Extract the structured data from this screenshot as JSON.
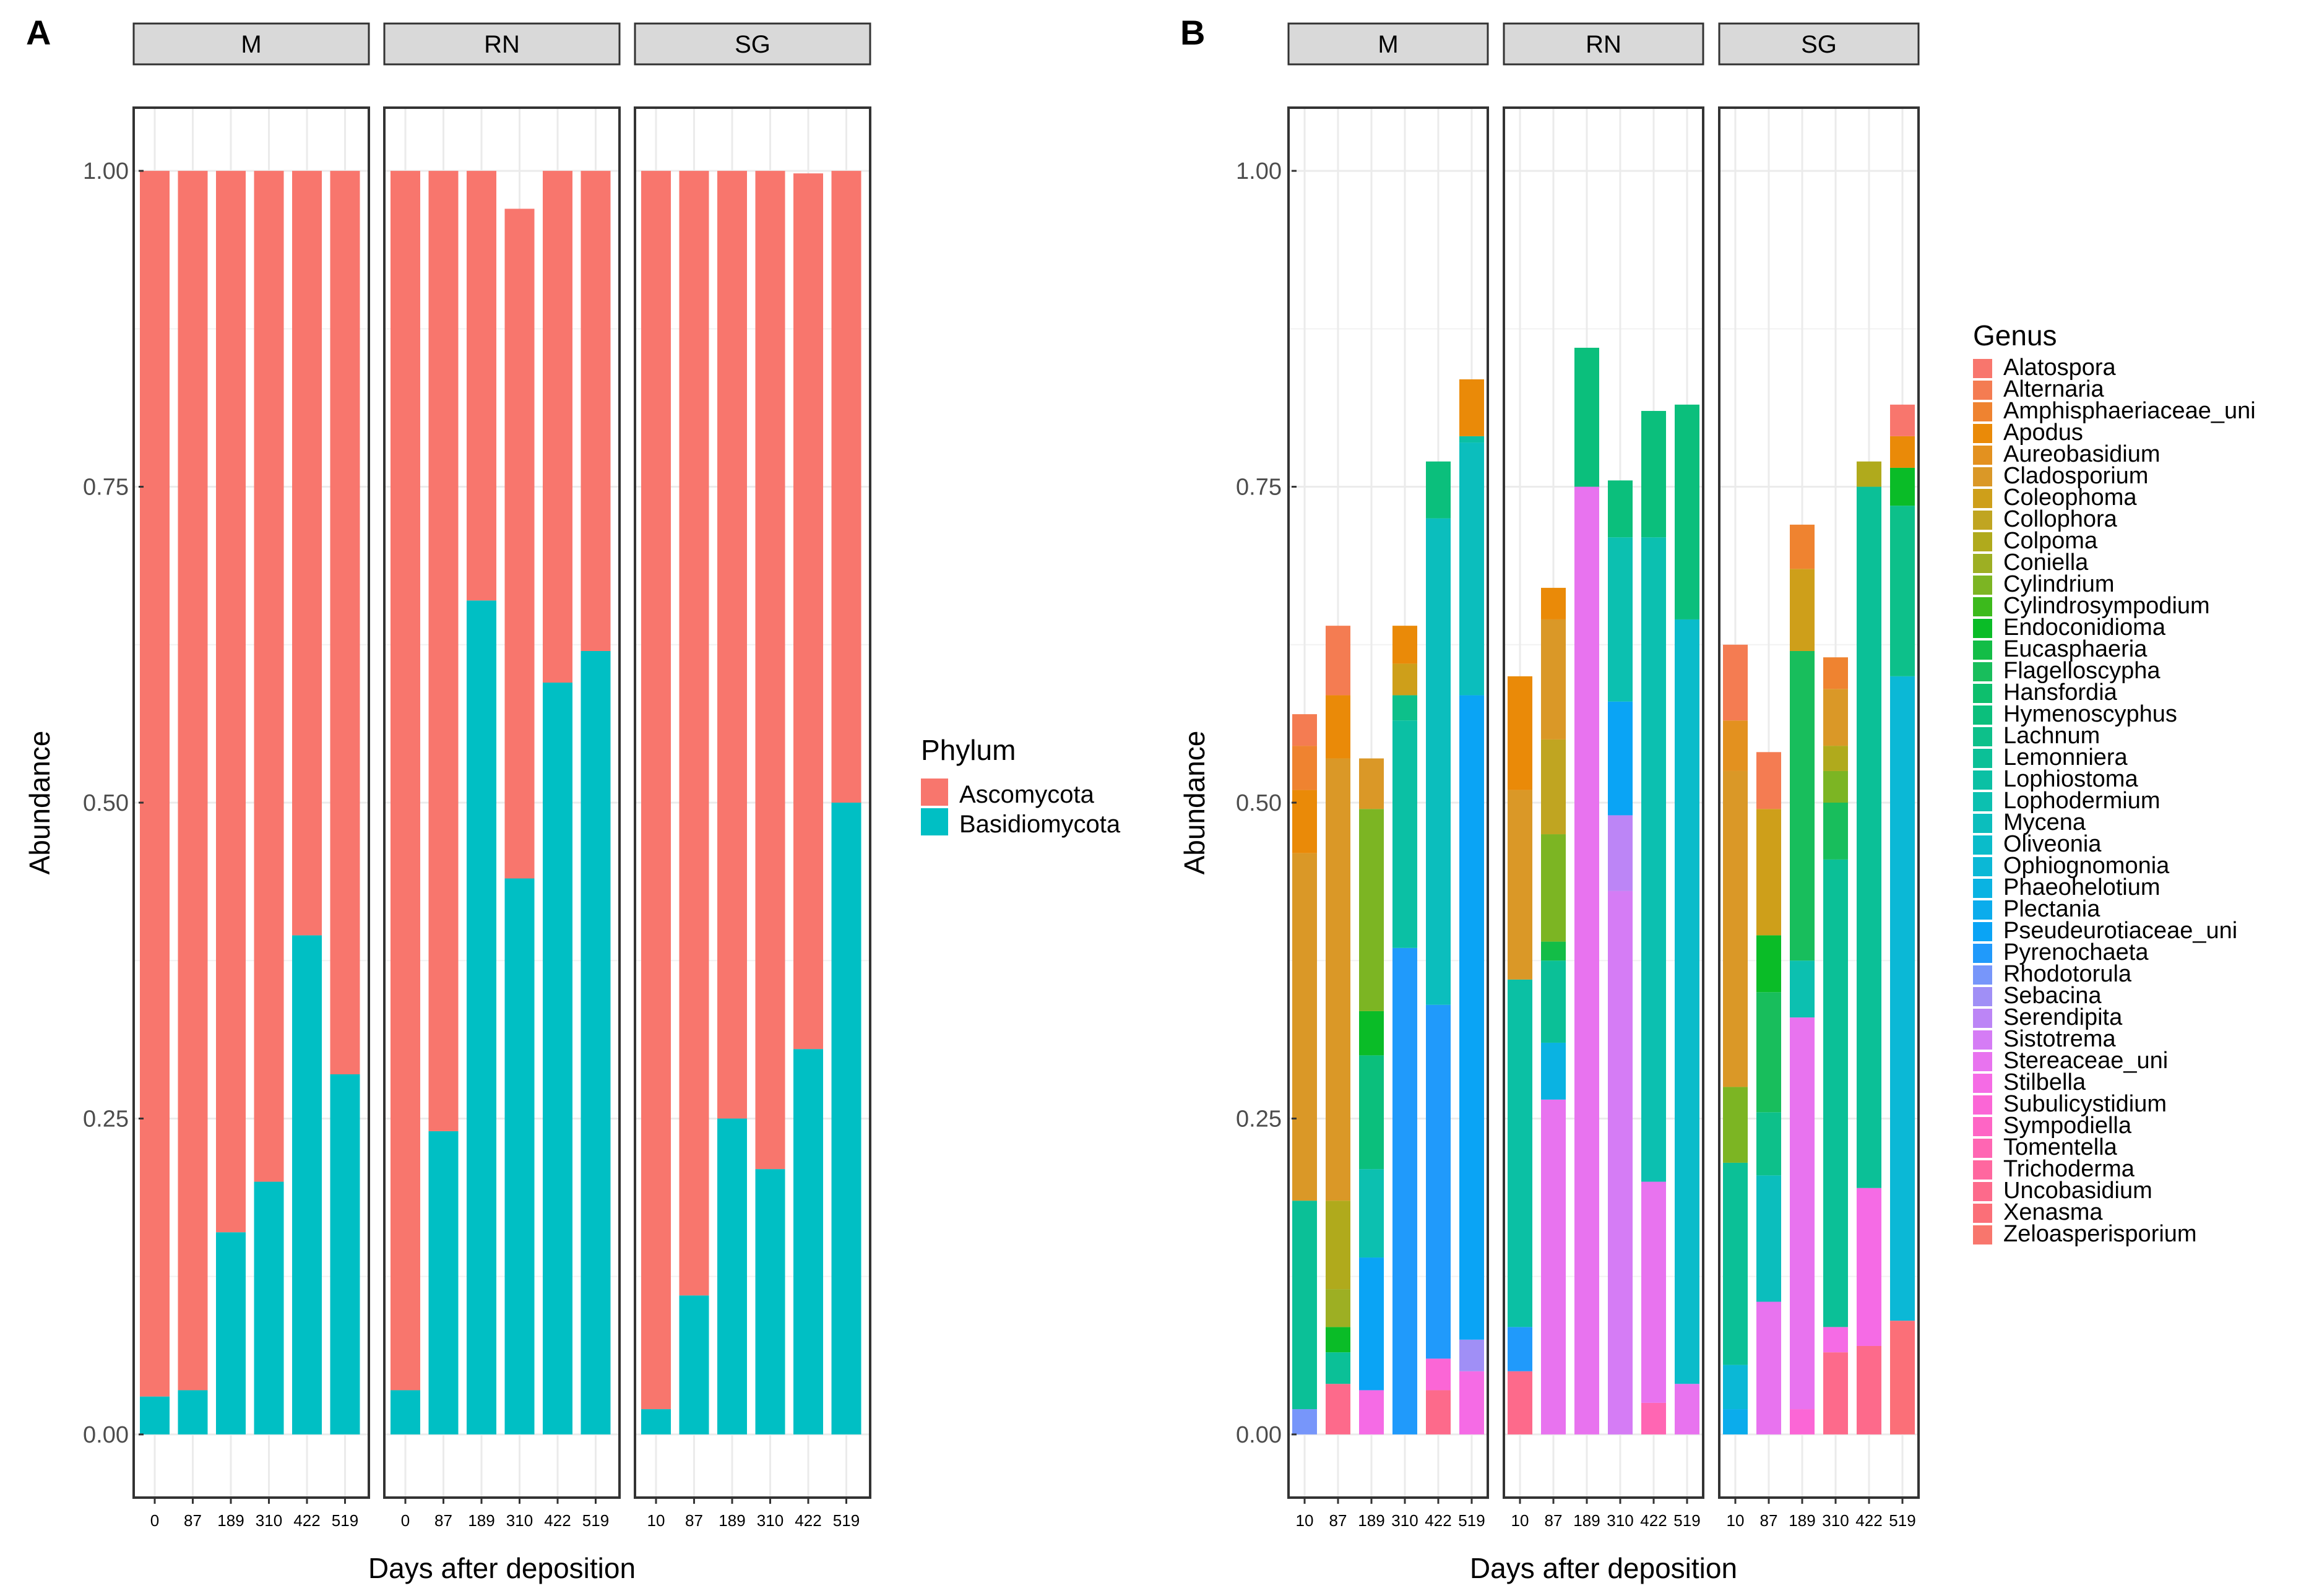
{
  "chart_data": [
    {
      "panel": "A",
      "type": "bar",
      "stacked": true,
      "xlabel": "Days after deposition",
      "ylabel": "Abundance",
      "ylim": [
        -0.05,
        1.05
      ],
      "yticks": [
        "0.00",
        "0.25",
        "0.50",
        "0.75",
        "1.00"
      ],
      "ytick_values": [
        0,
        0.25,
        0.5,
        0.75,
        1.0
      ],
      "legend_title": "Phylum",
      "legend": [
        {
          "name": "Ascomycota",
          "color": "#F8766D"
        },
        {
          "name": "Basidiomycota",
          "color": "#00BFC4"
        }
      ],
      "facets": [
        {
          "name": "M",
          "categories": [
            "0",
            "87",
            "189",
            "310",
            "422",
            "519"
          ],
          "series": [
            {
              "name": "Basidiomycota",
              "values": [
                0.03,
                0.035,
                0.16,
                0.2,
                0.395,
                0.285
              ]
            },
            {
              "name": "Ascomycota",
              "values": [
                0.97,
                0.965,
                0.84,
                0.8,
                0.605,
                0.715
              ]
            }
          ]
        },
        {
          "name": "RN",
          "categories": [
            "0",
            "87",
            "189",
            "310",
            "422",
            "519"
          ],
          "series": [
            {
              "name": "Basidiomycota",
              "values": [
                0.035,
                0.24,
                0.66,
                0.44,
                0.595,
                0.62
              ]
            },
            {
              "name": "Ascomycota",
              "values": [
                0.965,
                0.76,
                0.34,
                0.53,
                0.405,
                0.38
              ]
            }
          ]
        },
        {
          "name": "SG",
          "categories": [
            "10",
            "87",
            "189",
            "310",
            "422",
            "519"
          ],
          "series": [
            {
              "name": "Basidiomycota",
              "values": [
                0.02,
                0.11,
                0.25,
                0.21,
                0.305,
                0.5
              ]
            },
            {
              "name": "Ascomycota",
              "values": [
                0.98,
                0.89,
                0.75,
                0.79,
                0.693,
                0.5
              ]
            }
          ]
        }
      ]
    },
    {
      "panel": "B",
      "type": "bar",
      "stacked": true,
      "xlabel": "Days after deposition",
      "ylabel": "Abundance",
      "ylim": [
        -0.05,
        1.05
      ],
      "yticks": [
        "0.00",
        "0.25",
        "0.50",
        "0.75",
        "1.00"
      ],
      "ytick_values": [
        0,
        0.25,
        0.5,
        0.75,
        1.0
      ],
      "legend_title": "Genus",
      "legend": [
        {
          "name": "Alatospora",
          "color": "#F8766D"
        },
        {
          "name": "Alternaria",
          "color": "#F47C52"
        },
        {
          "name": "Amphisphaeriaceae_uni",
          "color": "#EF8330"
        },
        {
          "name": "Apodus",
          "color": "#EA8A08"
        },
        {
          "name": "Aureobasidium",
          "color": "#E3911F"
        },
        {
          "name": "Cladosporium",
          "color": "#DA9827"
        },
        {
          "name": "Coleophoma",
          "color": "#CE9F1A"
        },
        {
          "name": "Collophora",
          "color": "#C0A521"
        },
        {
          "name": "Colpoma",
          "color": "#B0AA1C"
        },
        {
          "name": "Coniella",
          "color": "#9DAF23"
        },
        {
          "name": "Cylindrium",
          "color": "#7CB523"
        },
        {
          "name": "Cylindrosympodium",
          "color": "#3CBA1C"
        },
        {
          "name": "Endoconidioma",
          "color": "#0ABC27"
        },
        {
          "name": "Eucasphaeria",
          "color": "#13BD47"
        },
        {
          "name": "Flagelloscypha",
          "color": "#18BE5C"
        },
        {
          "name": "Hansfordia",
          "color": "#0DBF6D"
        },
        {
          "name": "Hymenoscyphus",
          "color": "#0BBF7C"
        },
        {
          "name": "Lachnum",
          "color": "#0DC08A"
        },
        {
          "name": "Lemonniera",
          "color": "#0BC097"
        },
        {
          "name": "Lophiostoma",
          "color": "#0BC0A4"
        },
        {
          "name": "Lophodermium",
          "color": "#0CC0B0"
        },
        {
          "name": "Mycena",
          "color": "#0BBEBD"
        },
        {
          "name": "Oliveonia",
          "color": "#0ABCCA"
        },
        {
          "name": "Ophiognomonia",
          "color": "#0BB8D6"
        },
        {
          "name": "Phaeohelotium",
          "color": "#0AB3E2"
        },
        {
          "name": "Plectania",
          "color": "#0BACEC"
        },
        {
          "name": "Pseudeurotiaceae_uni",
          "color": "#0AA4F5"
        },
        {
          "name": "Pyrenochaeta",
          "color": "#209AFB"
        },
        {
          "name": "Rhodotorula",
          "color": "#7796FA"
        },
        {
          "name": "Sebacina",
          "color": "#A08FF6"
        },
        {
          "name": "Serendipita",
          "color": "#BC85F6"
        },
        {
          "name": "Sistotrema",
          "color": "#D57CF5"
        },
        {
          "name": "Stereaceae_uni",
          "color": "#E873EF"
        },
        {
          "name": "Stilbella",
          "color": "#F56BE5"
        },
        {
          "name": "Subulicystidium",
          "color": "#FB66D6"
        },
        {
          "name": "Sympodiella",
          "color": "#FE65C5"
        },
        {
          "name": "Tomentella",
          "color": "#FF66B3"
        },
        {
          "name": "Trichoderma",
          "color": "#FF679F"
        },
        {
          "name": "Uncobasidium",
          "color": "#FD6A8B"
        },
        {
          "name": "Xenasma",
          "color": "#FB6F78"
        },
        {
          "name": "Zeloasperisporium",
          "color": "#F8766D"
        }
      ],
      "facets": [
        {
          "name": "M",
          "categories": [
            "10",
            "87",
            "189",
            "310",
            "422",
            "519"
          ],
          "bars": [
            [
              {
                "g": "Rhodotorula",
                "v": 0.02
              },
              {
                "g": "Lemonniera",
                "v": 0.165
              },
              {
                "g": "Cladosporium",
                "v": 0.275
              },
              {
                "g": "Apodus",
                "v": 0.05
              },
              {
                "g": "Amphisphaeriaceae_uni",
                "v": 0.035
              },
              {
                "g": "Alternaria",
                "v": 0.025
              }
            ],
            [
              {
                "g": "Uncobasidium",
                "v": 0.04
              },
              {
                "g": "Lemonniera",
                "v": 0.025
              },
              {
                "g": "Endoconidioma",
                "v": 0.02
              },
              {
                "g": "Coniella",
                "v": 0.03
              },
              {
                "g": "Colpoma",
                "v": 0.07
              },
              {
                "g": "Cladosporium",
                "v": 0.35
              },
              {
                "g": "Apodus",
                "v": 0.05
              },
              {
                "g": "Alternaria",
                "v": 0.055
              }
            ],
            [
              {
                "g": "Stilbella",
                "v": 0.035
              },
              {
                "g": "Pseudeurotiaceae_uni",
                "v": 0.105
              },
              {
                "g": "Lophodermium",
                "v": 0.07
              },
              {
                "g": "Hymenoscyphus",
                "v": 0.09
              },
              {
                "g": "Endoconidioma",
                "v": 0.035
              },
              {
                "g": "Cylindrium",
                "v": 0.16
              },
              {
                "g": "Cladosporium",
                "v": 0.04
              }
            ],
            [
              {
                "g": "Pyrenochaeta",
                "v": 0.385
              },
              {
                "g": "Lophiostoma",
                "v": 0.18
              },
              {
                "g": "Lachnum",
                "v": 0.02
              },
              {
                "g": "Coleophoma",
                "v": 0.025
              },
              {
                "g": "Apodus",
                "v": 0.03
              }
            ],
            [
              {
                "g": "Uncobasidium",
                "v": 0.035
              },
              {
                "g": "Subulicystidium",
                "v": 0.025
              },
              {
                "g": "Pyrenochaeta",
                "v": 0.28
              },
              {
                "g": "Mycena",
                "v": 0.385
              },
              {
                "g": "Hymenoscyphus",
                "v": 0.045
              }
            ],
            [
              {
                "g": "Stilbella",
                "v": 0.05
              },
              {
                "g": "Sebacina",
                "v": 0.025
              },
              {
                "g": "Pseudeurotiaceae_uni",
                "v": 0.51
              },
              {
                "g": "Mycena",
                "v": 0.2
              },
              {
                "g": "Lophiostoma",
                "v": 0.005
              },
              {
                "g": "Apodus",
                "v": 0.045
              }
            ]
          ]
        },
        {
          "name": "RN",
          "categories": [
            "10",
            "87",
            "189",
            "310",
            "422",
            "519"
          ],
          "bars": [
            [
              {
                "g": "Uncobasidium",
                "v": 0.05
              },
              {
                "g": "Pyrenochaeta",
                "v": 0.035
              },
              {
                "g": "Lophiostoma",
                "v": 0.275
              },
              {
                "g": "Cladosporium",
                "v": 0.15
              },
              {
                "g": "Apodus",
                "v": 0.09
              }
            ],
            [
              {
                "g": "Stereaceae_uni",
                "v": 0.265
              },
              {
                "g": "Phaeohelotium",
                "v": 0.045
              },
              {
                "g": "Lemonniera",
                "v": 0.065
              },
              {
                "g": "Eucasphaeria",
                "v": 0.015
              },
              {
                "g": "Cylindrium",
                "v": 0.085
              },
              {
                "g": "Collophora",
                "v": 0.075
              },
              {
                "g": "Cladosporium",
                "v": 0.095
              },
              {
                "g": "Apodus",
                "v": 0.025
              }
            ],
            [
              {
                "g": "Stereaceae_uni",
                "v": 0.75
              },
              {
                "g": "Hymenoscyphus",
                "v": 0.11
              }
            ],
            [
              {
                "g": "Sistotrema",
                "v": 0.43
              },
              {
                "g": "Serendipita",
                "v": 0.06
              },
              {
                "g": "Pseudeurotiaceae_uni",
                "v": 0.09
              },
              {
                "g": "Lophodermium",
                "v": 0.13
              },
              {
                "g": "Hymenoscyphus",
                "v": 0.045
              }
            ],
            [
              {
                "g": "Tomentella",
                "v": 0.025
              },
              {
                "g": "Stereaceae_uni",
                "v": 0.175
              },
              {
                "g": "Lophodermium",
                "v": 0.51
              },
              {
                "g": "Hymenoscyphus",
                "v": 0.1
              }
            ],
            [
              {
                "g": "Stereaceae_uni",
                "v": 0.04
              },
              {
                "g": "Oliveonia",
                "v": 0.605
              },
              {
                "g": "Hymenoscyphus",
                "v": 0.17
              }
            ]
          ]
        },
        {
          "name": "SG",
          "categories": [
            "10",
            "87",
            "189",
            "310",
            "422",
            "519"
          ],
          "bars": [
            [
              {
                "g": "Plectania",
                "v": 0.02
              },
              {
                "g": "Ophiognomonia",
                "v": 0.035
              },
              {
                "g": "Lemonniera",
                "v": 0.16
              },
              {
                "g": "Cylindrium",
                "v": 0.06
              },
              {
                "g": "Cladosporium",
                "v": 0.25
              },
              {
                "g": "Aureobasidium",
                "v": 0.04
              },
              {
                "g": "Alternaria",
                "v": 0.06
              }
            ],
            [
              {
                "g": "Stereaceae_uni",
                "v": 0.105
              },
              {
                "g": "Mycena",
                "v": 0.1
              },
              {
                "g": "Lachnum",
                "v": 0.05
              },
              {
                "g": "Flagelloscypha",
                "v": 0.095
              },
              {
                "g": "Endoconidioma",
                "v": 0.045
              },
              {
                "g": "Coleophoma",
                "v": 0.1
              },
              {
                "g": "Alternaria",
                "v": 0.045
              }
            ],
            [
              {
                "g": "Subulicystidium",
                "v": 0.02
              },
              {
                "g": "Stereaceae_uni",
                "v": 0.31
              },
              {
                "g": "Lophodermium",
                "v": 0.045
              },
              {
                "g": "Flagelloscypha",
                "v": 0.245
              },
              {
                "g": "Coleophoma",
                "v": 0.065
              },
              {
                "g": "Amphisphaeriaceae_uni",
                "v": 0.035
              }
            ],
            [
              {
                "g": "Uncobasidium",
                "v": 0.065
              },
              {
                "g": "Stilbella",
                "v": 0.02
              },
              {
                "g": "Lemonniera",
                "v": 0.37
              },
              {
                "g": "Flagelloscypha",
                "v": 0.045
              },
              {
                "g": "Cylindrium",
                "v": 0.025
              },
              {
                "g": "Colpoma",
                "v": 0.02
              },
              {
                "g": "Cladosporium",
                "v": 0.045
              },
              {
                "g": "Amphisphaeriaceae_uni",
                "v": 0.025
              }
            ],
            [
              {
                "g": "Uncobasidium",
                "v": 0.07
              },
              {
                "g": "Stilbella",
                "v": 0.125
              },
              {
                "g": "Lemonniera",
                "v": 0.555
              },
              {
                "g": "Colpoma",
                "v": 0.02
              }
            ],
            [
              {
                "g": "Xenasma",
                "v": 0.09
              },
              {
                "g": "Ophiognomonia",
                "v": 0.51
              },
              {
                "g": "Lachnum",
                "v": 0.135
              },
              {
                "g": "Endoconidioma",
                "v": 0.03
              },
              {
                "g": "Apodus",
                "v": 0.025
              },
              {
                "g": "Alatospora",
                "v": 0.025
              }
            ]
          ]
        }
      ]
    }
  ]
}
